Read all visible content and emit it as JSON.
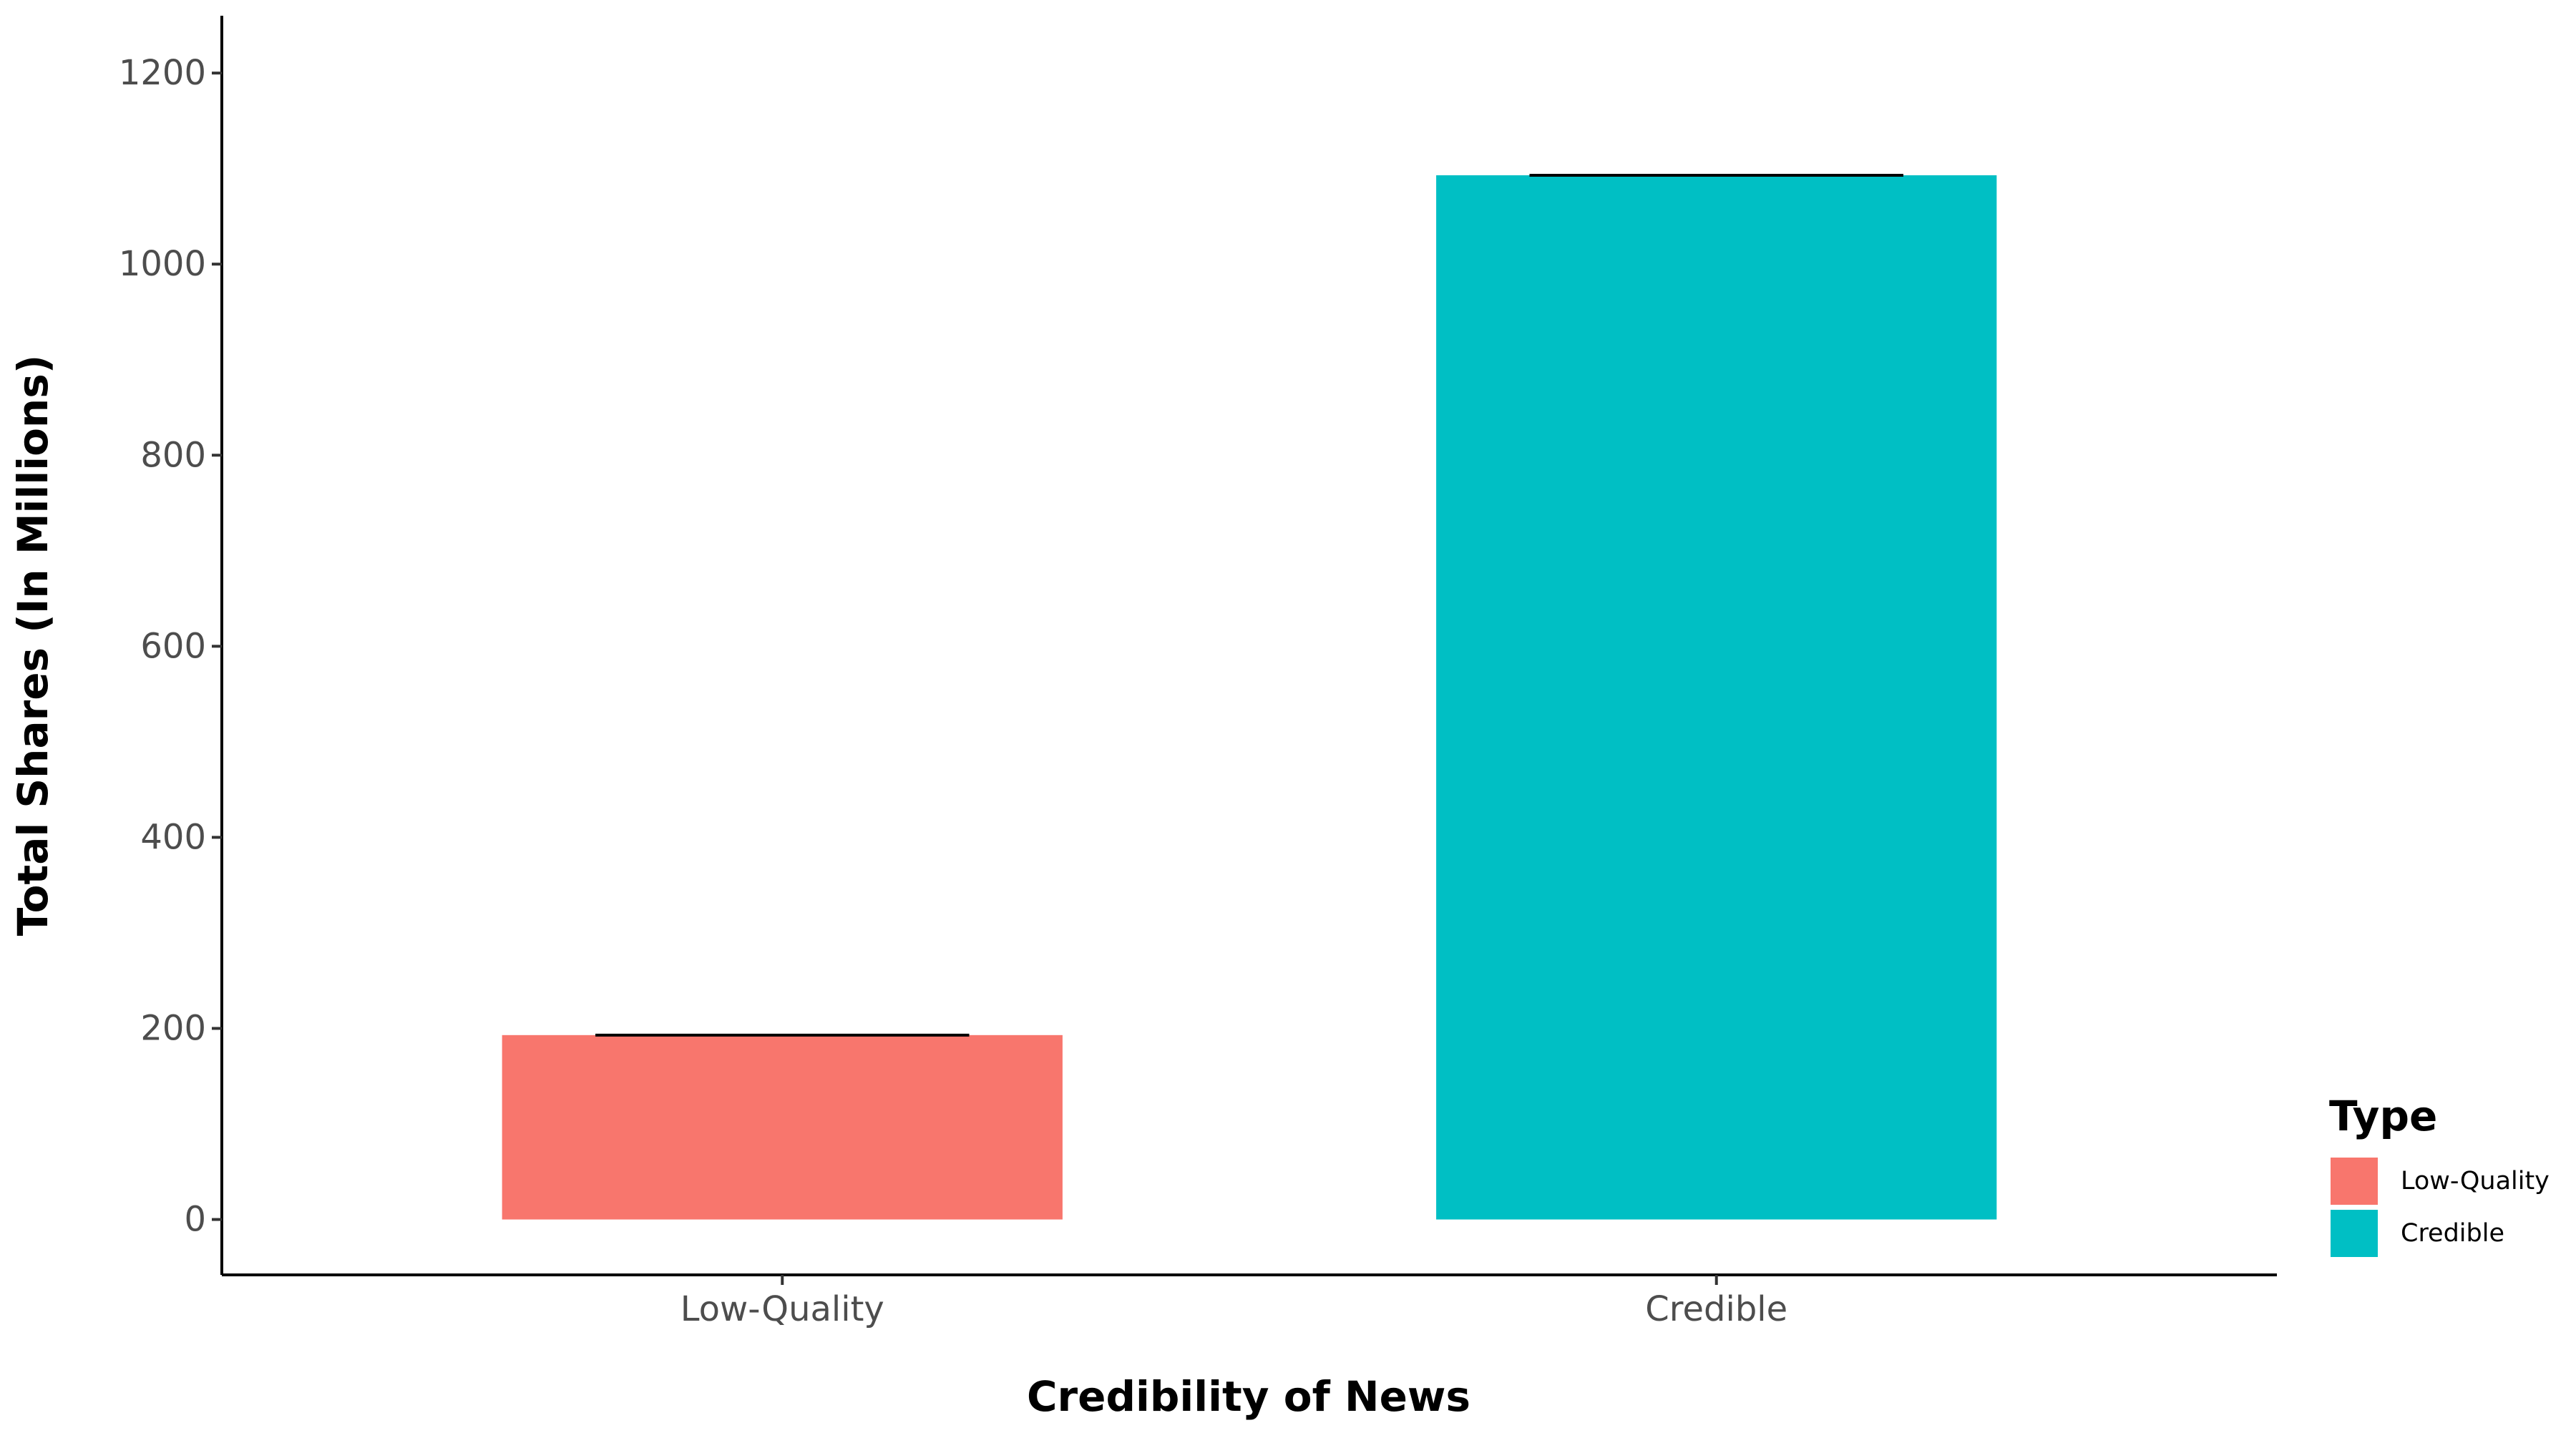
{
  "chart_data": {
    "type": "bar",
    "categories": [
      "Low-Quality",
      "Credible"
    ],
    "values": [
      193,
      1093
    ],
    "colors": [
      "#F8766D",
      "#00BFC4"
    ],
    "xlabel": "Credibility of News",
    "ylabel": "Total Shares (In Millions)",
    "ylim": [
      -58,
      1260
    ],
    "yticks": [
      0,
      200,
      400,
      600,
      800,
      1000,
      1200
    ],
    "grid": false,
    "error_bars": true,
    "legend": {
      "title": "Type",
      "position": "right",
      "entries": [
        {
          "label": "Low-Quality",
          "color": "#F8766D"
        },
        {
          "label": "Credible",
          "color": "#00BFC4"
        }
      ]
    }
  }
}
